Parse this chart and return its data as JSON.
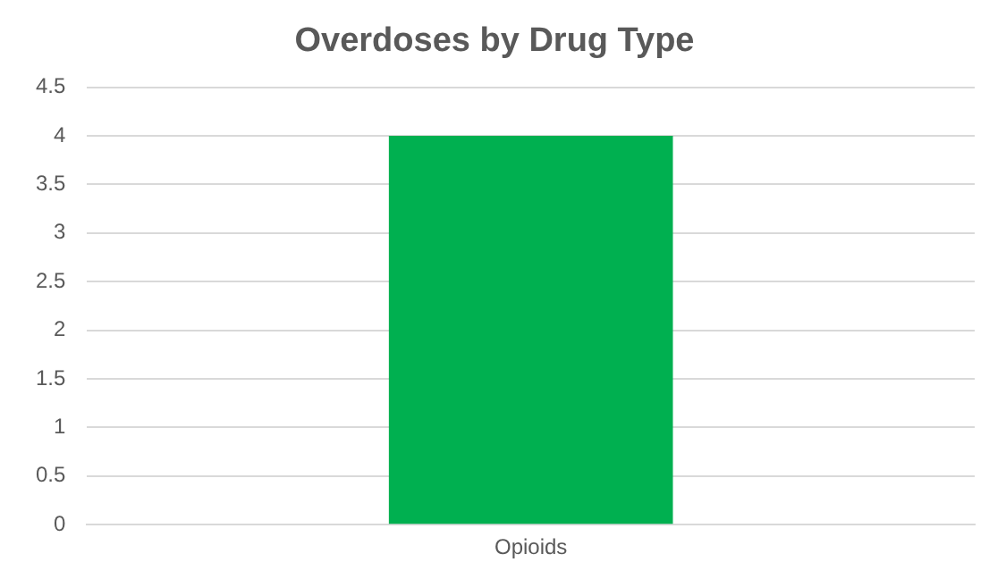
{
  "chart_data": {
    "type": "bar",
    "title": "Overdoses by Drug Type",
    "categories": [
      "Opioids"
    ],
    "values": [
      4
    ],
    "color": "#00b050",
    "ylim": [
      0,
      4.5
    ],
    "yticks": [
      0,
      0.5,
      1,
      1.5,
      2,
      2.5,
      3,
      3.5,
      4,
      4.5
    ],
    "grid": "y"
  }
}
